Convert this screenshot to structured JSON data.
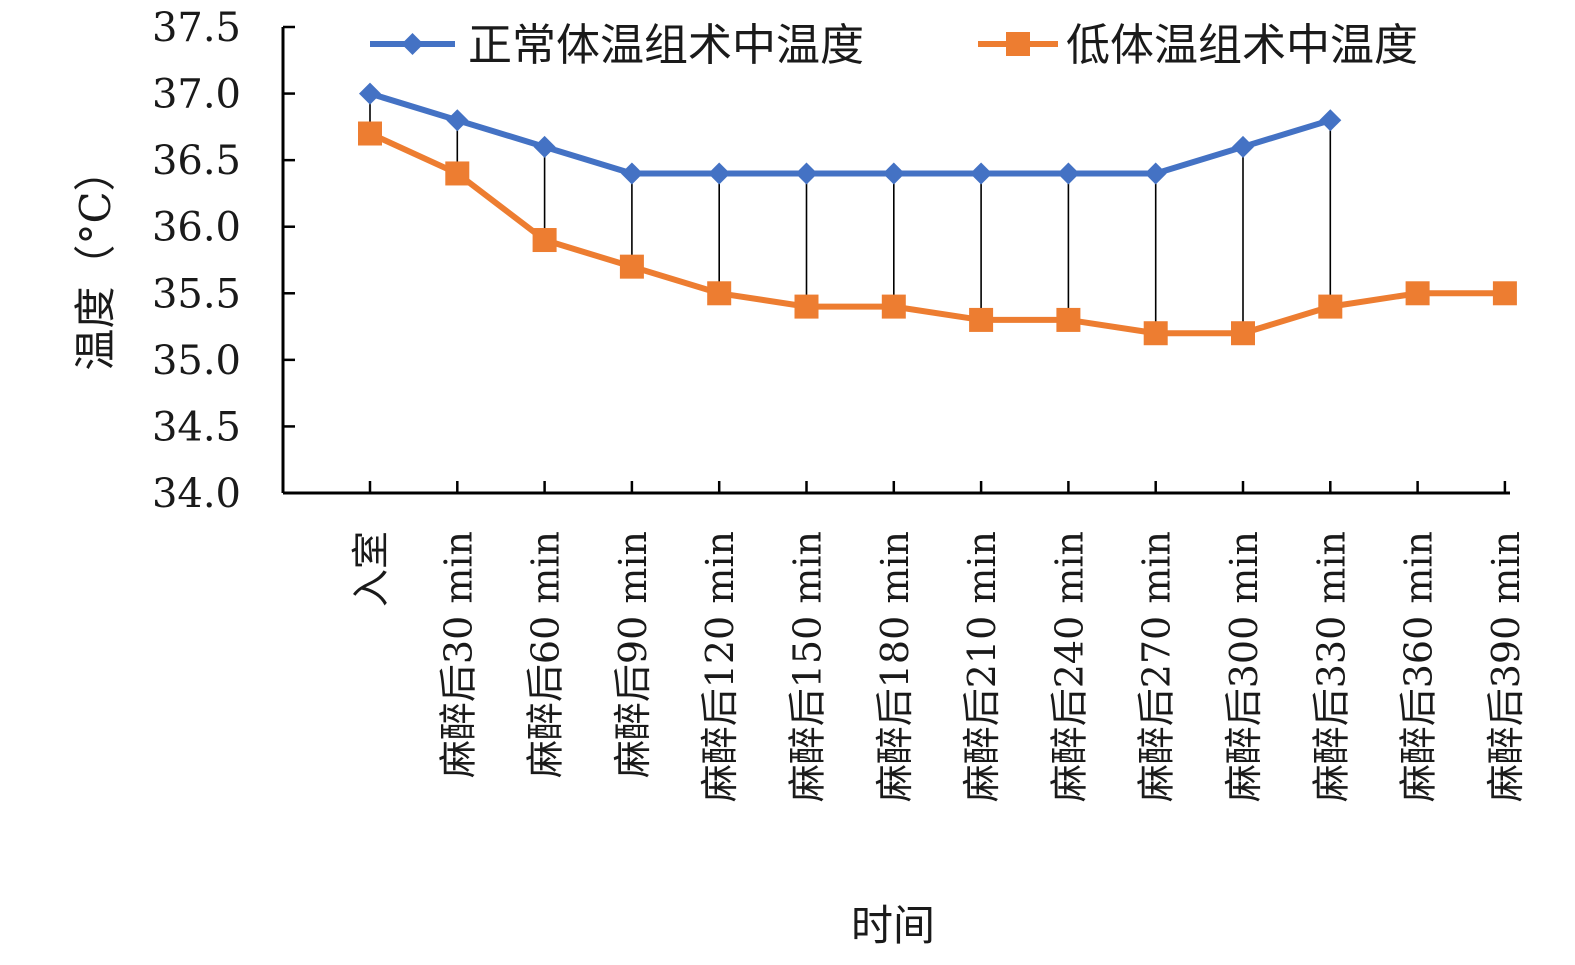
{
  "chart_data": {
    "type": "line",
    "title": "",
    "xlabel": "时间",
    "ylabel": "温度（°C）",
    "ylim": [
      34.0,
      37.5
    ],
    "y_ticks": [
      "34.0",
      "34.5",
      "35.0",
      "35.5",
      "36.0",
      "36.5",
      "37.0",
      "37.5"
    ],
    "y_tick_values": [
      34.0,
      34.5,
      35.0,
      35.5,
      36.0,
      36.5,
      37.0,
      37.5
    ],
    "grid": false,
    "legend_position": "top-right",
    "categories": [
      "入室",
      "麻醉后30 min",
      "麻醉后60 min",
      "麻醉后90 min",
      "麻醉后120 min",
      "麻醉后150 min",
      "麻醉后180 min",
      "麻醉后210 min",
      "麻醉后240 min",
      "麻醉后270 min",
      "麻醉后300 min",
      "麻醉后330 min",
      "麻醉后360 min",
      "麻醉后390 min"
    ],
    "series": [
      {
        "name": "正常体温组术中温度",
        "color": "#4472C4",
        "marker": "diamond",
        "values": [
          37.0,
          36.8,
          36.6,
          36.4,
          36.4,
          36.4,
          36.4,
          36.4,
          36.4,
          36.4,
          36.6,
          36.8,
          null,
          null
        ]
      },
      {
        "name": "低体温组术中温度",
        "color": "#ED7D31",
        "marker": "square",
        "values": [
          36.7,
          36.4,
          35.9,
          35.7,
          35.5,
          35.4,
          35.4,
          35.3,
          35.3,
          35.2,
          35.2,
          35.4,
          35.5,
          35.5
        ]
      }
    ],
    "drop_lines": true
  }
}
